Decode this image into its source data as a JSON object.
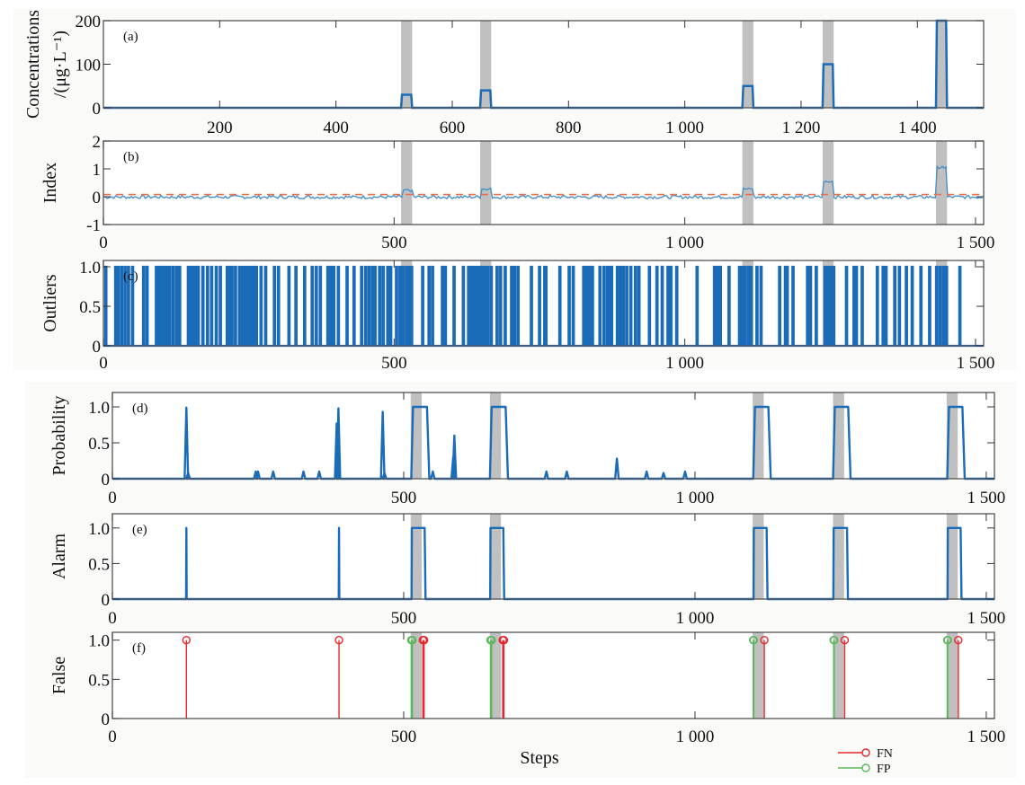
{
  "colors": {
    "series": "#1a6cb8",
    "series_light": "#4a90c8",
    "threshold": "#e8704f",
    "event_band": "#c0c0c0",
    "fn": "#e8262b",
    "fp": "#5cb85c",
    "axis": "#555555",
    "background": "#fafaf9"
  },
  "chart_data": [
    {
      "id": "a",
      "type": "line",
      "tag": "(a)",
      "ylabel_line1": "Concentrations",
      "ylabel_line2": "/(μg·L⁻¹)",
      "xlabel": "",
      "xlim": [
        0,
        1514
      ],
      "ylim": [
        0,
        200
      ],
      "xticks": [
        200,
        400,
        600,
        800,
        1000,
        1200,
        1400
      ],
      "xtick_labels": [
        "200",
        "400",
        "600",
        "800",
        "1 000",
        "1 200",
        "1 400"
      ],
      "yticks": [
        0,
        100,
        200
      ],
      "ytick_labels": [
        "0",
        "100",
        "200"
      ],
      "events": [
        [
          512,
          531
        ],
        [
          648,
          667
        ],
        [
          1099,
          1118
        ],
        [
          1237,
          1256
        ],
        [
          1432,
          1451
        ]
      ],
      "series": [
        {
          "name": "concentration",
          "baseline": 0,
          "event_levels": [
            30,
            40,
            50,
            100,
            200
          ]
        }
      ]
    },
    {
      "id": "b",
      "type": "line",
      "tag": "(b)",
      "ylabel_line1": "Index",
      "xlim": [
        0,
        1514
      ],
      "ylim": [
        -1,
        2
      ],
      "xticks": [
        0,
        500,
        1000,
        1500
      ],
      "xtick_labels": [
        "0",
        "500",
        "1 000",
        "1 500"
      ],
      "yticks": [
        -1,
        0,
        1,
        2
      ],
      "ytick_labels": [
        "-1",
        "0",
        "1",
        "2"
      ],
      "events": [
        [
          512,
          531
        ],
        [
          648,
          667
        ],
        [
          1099,
          1118
        ],
        [
          1237,
          1256
        ],
        [
          1432,
          1451
        ]
      ],
      "threshold": 0.08,
      "series": [
        {
          "name": "index",
          "baseline": 0.0,
          "noise": 0.06,
          "event_levels": [
            0.22,
            0.28,
            0.28,
            0.55,
            1.05
          ]
        },
        {
          "name": "threshold",
          "style": "dashed",
          "value": 0.08
        }
      ]
    },
    {
      "id": "c",
      "type": "line",
      "tag": "(c)",
      "ylabel_line1": "Outliers",
      "xlim": [
        0,
        1514
      ],
      "ylim": [
        0,
        1.08
      ],
      "xticks": [
        0,
        500,
        1000,
        1500
      ],
      "xtick_labels": [
        "0",
        "500",
        "1 000",
        "1 500"
      ],
      "yticks": [
        0,
        0.5,
        1.0
      ],
      "ytick_labels": [
        "0",
        "0.5",
        "1.0"
      ],
      "events": [
        [
          512,
          531
        ],
        [
          648,
          667
        ],
        [
          1099,
          1118
        ],
        [
          1237,
          1256
        ],
        [
          1432,
          1451
        ]
      ],
      "outlier_steps": [
        3,
        20,
        24,
        30,
        36,
        42,
        49,
        68,
        74,
        90,
        93,
        96,
        101,
        105,
        108,
        113,
        119,
        125,
        130,
        145,
        150,
        154,
        158,
        162,
        170,
        178,
        185,
        193,
        200,
        212,
        215,
        220,
        226,
        233,
        237,
        240,
        243,
        246,
        249,
        252,
        255,
        258,
        262,
        270,
        278,
        293,
        300,
        318,
        330,
        345,
        358,
        365,
        372,
        385,
        390,
        395,
        403,
        418,
        430,
        443,
        450,
        456,
        462,
        466,
        474,
        480,
        488,
        493,
        503,
        509,
        514,
        520,
        525,
        529,
        548,
        559,
        565,
        582,
        587,
        602,
        618,
        627,
        632,
        637,
        641,
        646,
        650,
        655,
        660,
        666,
        676,
        682,
        690,
        701,
        706,
        712,
        735,
        749,
        758,
        760,
        784,
        800,
        807,
        825,
        830,
        833,
        836,
        840,
        853,
        860,
        866,
        869,
        873,
        883,
        888,
        893,
        899,
        906,
        914,
        920,
        938,
        951,
        960,
        970,
        975,
        985,
        1020,
        1050,
        1055,
        1060,
        1075,
        1093,
        1098,
        1102,
        1108,
        1113,
        1123,
        1130,
        1162,
        1172,
        1175,
        1185,
        1210,
        1215,
        1225,
        1240,
        1245,
        1250,
        1255,
        1277,
        1290,
        1294,
        1304,
        1330,
        1340,
        1345,
        1360,
        1368,
        1380,
        1390,
        1405,
        1420,
        1432,
        1438,
        1444,
        1449,
        1472
      ],
      "series": [
        {
          "name": "outliers",
          "values": "binary spikes at outlier_steps"
        }
      ]
    },
    {
      "id": "d",
      "type": "line",
      "tag": "(d)",
      "ylabel_line1": "Probability",
      "xlim": [
        0,
        1514
      ],
      "ylim": [
        0,
        1.2
      ],
      "xticks": [
        0,
        500,
        1000,
        1500
      ],
      "xtick_labels": [
        "0",
        "500",
        "1 000",
        "1 500"
      ],
      "yticks": [
        0,
        0.5,
        1.0
      ],
      "ytick_labels": [
        "0",
        "0.5",
        "1.0"
      ],
      "events": [
        [
          512,
          531
        ],
        [
          648,
          667
        ],
        [
          1099,
          1118
        ],
        [
          1237,
          1256
        ],
        [
          1432,
          1451
        ]
      ],
      "spikes": [
        [
          127,
          0.99
        ],
        [
          130,
          0.08
        ],
        [
          246,
          0.1
        ],
        [
          250,
          0.1
        ],
        [
          276,
          0.1
        ],
        [
          328,
          0.1
        ],
        [
          355,
          0.1
        ],
        [
          385,
          0.77
        ],
        [
          388,
          0.98
        ],
        [
          464,
          0.93
        ],
        [
          467,
          0.08
        ],
        [
          550,
          0.1
        ],
        [
          585,
          0.3
        ],
        [
          587,
          0.6
        ],
        [
          745,
          0.1
        ],
        [
          780,
          0.1
        ],
        [
          866,
          0.28
        ],
        [
          917,
          0.1
        ],
        [
          946,
          0.08
        ],
        [
          983,
          0.1
        ]
      ],
      "plateaus": [
        [
          516,
          540,
          1.0
        ],
        [
          651,
          675,
          1.0
        ],
        [
          1103,
          1126,
          1.0
        ],
        [
          1240,
          1263,
          1.0
        ],
        [
          1436,
          1459,
          1.0
        ]
      ]
    },
    {
      "id": "e",
      "type": "line",
      "tag": "(e)",
      "ylabel_line1": "Alarm",
      "xlim": [
        0,
        1514
      ],
      "ylim": [
        0,
        1.2
      ],
      "xticks": [
        0,
        500,
        1000,
        1500
      ],
      "xtick_labels": [
        "0",
        "500",
        "1 000",
        "1 500"
      ],
      "yticks": [
        0,
        0.5,
        1.0
      ],
      "ytick_labels": [
        "0",
        "0.5",
        "1.0"
      ],
      "events": [
        [
          512,
          531
        ],
        [
          648,
          667
        ],
        [
          1099,
          1118
        ],
        [
          1237,
          1256
        ],
        [
          1432,
          1451
        ]
      ],
      "spikes": [
        [
          127,
          1.0
        ],
        [
          389,
          1.0
        ]
      ],
      "plateaus": [
        [
          514,
          536,
          1.0
        ],
        [
          649,
          671,
          1.0
        ],
        [
          1101,
          1123,
          1.0
        ],
        [
          1238,
          1261,
          1.0
        ],
        [
          1434,
          1456,
          1.0
        ]
      ]
    },
    {
      "id": "f",
      "type": "stem",
      "tag": "(f)",
      "ylabel_line1": "False",
      "xlabel": "Steps",
      "xlim": [
        0,
        1514
      ],
      "ylim": [
        0,
        1.1
      ],
      "xticks": [
        0,
        500,
        1000,
        1500
      ],
      "xtick_labels": [
        "0",
        "500",
        "1 000",
        "1 500"
      ],
      "yticks": [
        0,
        0.5,
        1.0
      ],
      "ytick_labels": [
        "0",
        "0.5",
        "1.0"
      ],
      "events": [
        [
          512,
          531
        ],
        [
          648,
          667
        ],
        [
          1099,
          1118
        ],
        [
          1237,
          1256
        ],
        [
          1432,
          1451
        ]
      ],
      "legend": {
        "position": "bottom-right",
        "entries": [
          {
            "name": "FN",
            "color_key": "fn"
          },
          {
            "name": "FP",
            "color_key": "fp"
          }
        ]
      },
      "series": [
        {
          "name": "FN",
          "color_key": "fn",
          "points": [
            [
              127,
              1
            ],
            [
              389,
              1
            ],
            [
              533,
              1
            ],
            [
              534,
              1
            ],
            [
              535,
              1
            ],
            [
              670,
              1
            ],
            [
              671,
              1
            ],
            [
              672,
              1
            ],
            [
              1119,
              1
            ],
            [
              1257,
              1
            ],
            [
              1452,
              1
            ]
          ]
        },
        {
          "name": "FP",
          "color_key": "fp",
          "points": [
            [
              513,
              1
            ],
            [
              514,
              1
            ],
            [
              515,
              1
            ],
            [
              649,
              1
            ],
            [
              650,
              1
            ],
            [
              651,
              1
            ],
            [
              1100,
              1
            ],
            [
              1101,
              1
            ],
            [
              1238,
              1
            ],
            [
              1239,
              1
            ],
            [
              1433,
              1
            ],
            [
              1434,
              1
            ]
          ]
        }
      ]
    }
  ]
}
